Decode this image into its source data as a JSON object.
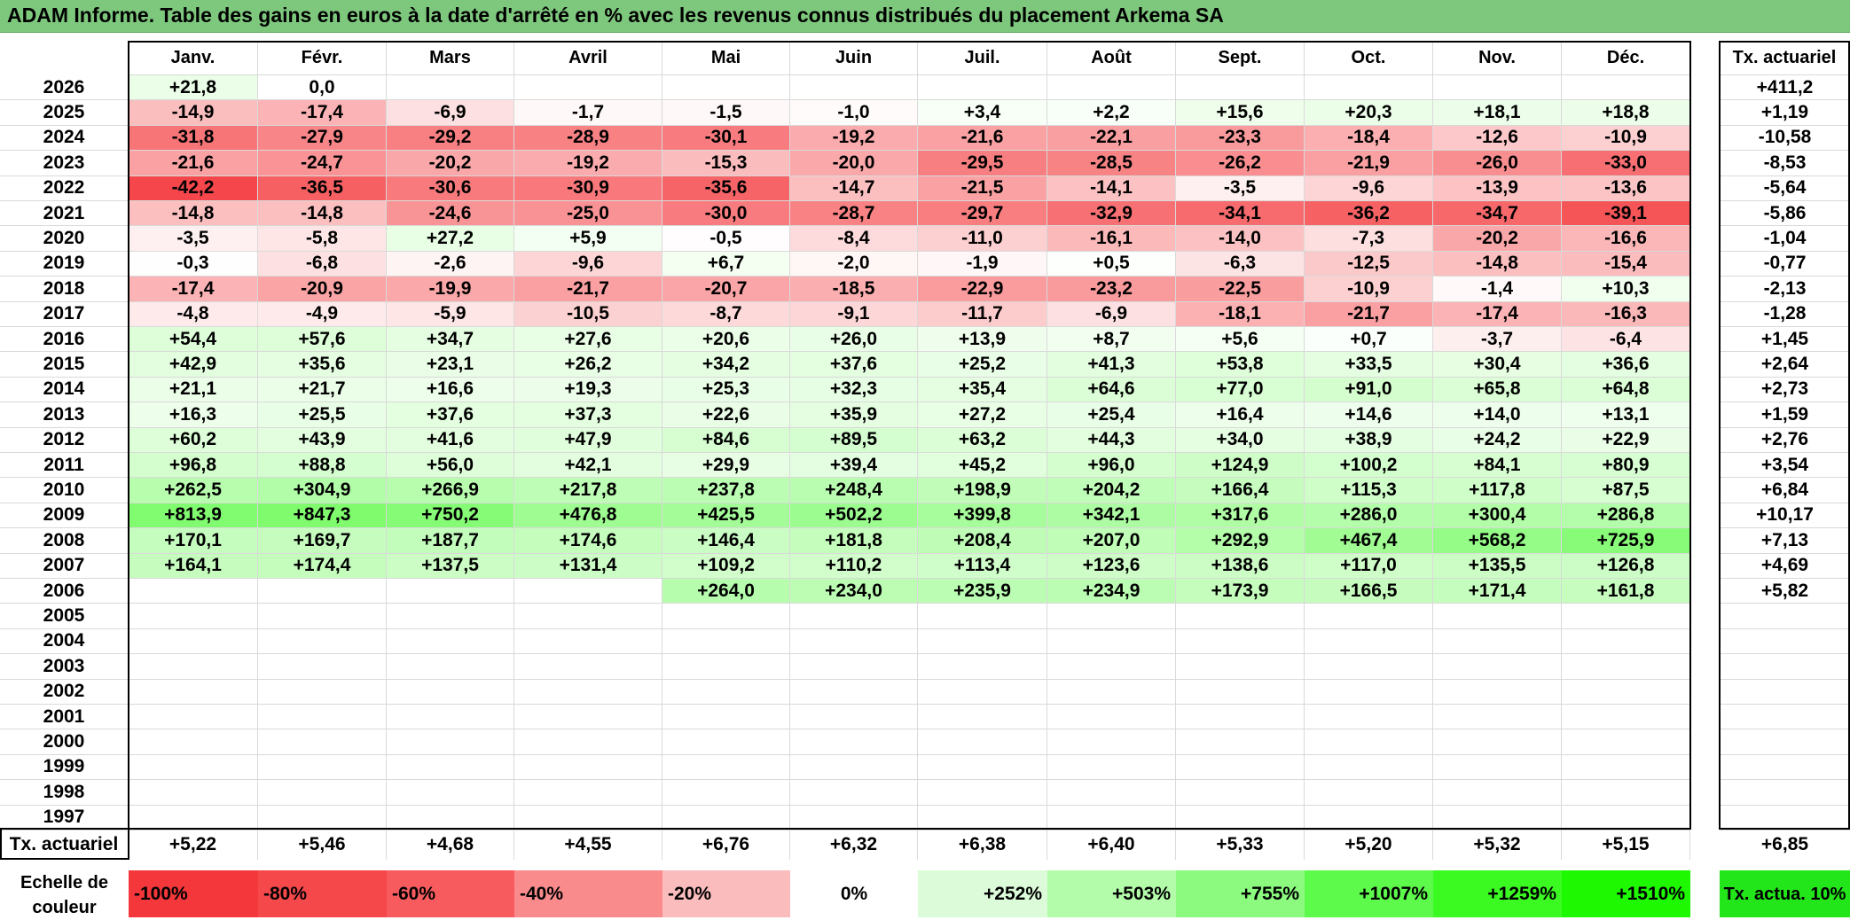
{
  "title": "ADAM Informe. Table des gains en euros à la date d'arrêté en % avec les revenus connus distribués du placement Arkema SA",
  "columns": [
    "Janv.",
    "Févr.",
    "Mars",
    "Avril",
    "Mai",
    "Juin",
    "Juil.",
    "Août",
    "Sept.",
    "Oct.",
    "Nov.",
    "Déc."
  ],
  "actuarial_header": "Tx. actuariel",
  "rows": [
    {
      "year": "2026",
      "cells": [
        "+21,8",
        "0,0",
        "",
        "",
        "",
        "",
        "",
        "",
        "",
        "",
        "",
        ""
      ],
      "rate": "+411,2"
    },
    {
      "year": "2025",
      "cells": [
        "-14,9",
        "-17,4",
        "-6,9",
        "-1,7",
        "-1,5",
        "-1,0",
        "+3,4",
        "+2,2",
        "+15,6",
        "+20,3",
        "+18,1",
        "+18,8"
      ],
      "rate": "+1,19"
    },
    {
      "year": "2024",
      "cells": [
        "-31,8",
        "-27,9",
        "-29,2",
        "-28,9",
        "-30,1",
        "-19,2",
        "-21,6",
        "-22,1",
        "-23,3",
        "-18,4",
        "-12,6",
        "-10,9"
      ],
      "rate": "-10,58"
    },
    {
      "year": "2023",
      "cells": [
        "-21,6",
        "-24,7",
        "-20,2",
        "-19,2",
        "-15,3",
        "-20,0",
        "-29,5",
        "-28,5",
        "-26,2",
        "-21,9",
        "-26,0",
        "-33,0"
      ],
      "rate": "-8,53"
    },
    {
      "year": "2022",
      "cells": [
        "-42,2",
        "-36,5",
        "-30,6",
        "-30,9",
        "-35,6",
        "-14,7",
        "-21,5",
        "-14,1",
        "-3,5",
        "-9,6",
        "-13,9",
        "-13,6"
      ],
      "rate": "-5,64"
    },
    {
      "year": "2021",
      "cells": [
        "-14,8",
        "-14,8",
        "-24,6",
        "-25,0",
        "-30,0",
        "-28,7",
        "-29,7",
        "-32,9",
        "-34,1",
        "-36,2",
        "-34,7",
        "-39,1"
      ],
      "rate": "-5,86"
    },
    {
      "year": "2020",
      "cells": [
        "-3,5",
        "-5,8",
        "+27,2",
        "+5,9",
        "-0,5",
        "-8,4",
        "-11,0",
        "-16,1",
        "-14,0",
        "-7,3",
        "-20,2",
        "-16,6"
      ],
      "rate": "-1,04"
    },
    {
      "year": "2019",
      "cells": [
        "-0,3",
        "-6,8",
        "-2,6",
        "-9,6",
        "+6,7",
        "-2,0",
        "-1,9",
        "+0,5",
        "-6,3",
        "-12,5",
        "-14,8",
        "-15,4"
      ],
      "rate": "-0,77"
    },
    {
      "year": "2018",
      "cells": [
        "-17,4",
        "-20,9",
        "-19,9",
        "-21,7",
        "-20,7",
        "-18,5",
        "-22,9",
        "-23,2",
        "-22,5",
        "-10,9",
        "-1,4",
        "+10,3"
      ],
      "rate": "-2,13"
    },
    {
      "year": "2017",
      "cells": [
        "-4,8",
        "-4,9",
        "-5,9",
        "-10,5",
        "-8,7",
        "-9,1",
        "-11,7",
        "-6,9",
        "-18,1",
        "-21,7",
        "-17,4",
        "-16,3"
      ],
      "rate": "-1,28"
    },
    {
      "year": "2016",
      "cells": [
        "+54,4",
        "+57,6",
        "+34,7",
        "+27,6",
        "+20,6",
        "+26,0",
        "+13,9",
        "+8,7",
        "+5,6",
        "+0,7",
        "-3,7",
        "-6,4"
      ],
      "rate": "+1,45"
    },
    {
      "year": "2015",
      "cells": [
        "+42,9",
        "+35,6",
        "+23,1",
        "+26,2",
        "+34,2",
        "+37,6",
        "+25,2",
        "+41,3",
        "+53,8",
        "+33,5",
        "+30,4",
        "+36,6"
      ],
      "rate": "+2,64"
    },
    {
      "year": "2014",
      "cells": [
        "+21,1",
        "+21,7",
        "+16,6",
        "+19,3",
        "+25,3",
        "+32,3",
        "+35,4",
        "+64,6",
        "+77,0",
        "+91,0",
        "+65,8",
        "+64,8"
      ],
      "rate": "+2,73"
    },
    {
      "year": "2013",
      "cells": [
        "+16,3",
        "+25,5",
        "+37,6",
        "+37,3",
        "+22,6",
        "+35,9",
        "+27,2",
        "+25,4",
        "+16,4",
        "+14,6",
        "+14,0",
        "+13,1"
      ],
      "rate": "+1,59"
    },
    {
      "year": "2012",
      "cells": [
        "+60,2",
        "+43,9",
        "+41,6",
        "+47,9",
        "+84,6",
        "+89,5",
        "+63,2",
        "+44,3",
        "+34,0",
        "+38,9",
        "+24,2",
        "+22,9"
      ],
      "rate": "+2,76"
    },
    {
      "year": "2011",
      "cells": [
        "+96,8",
        "+88,8",
        "+56,0",
        "+42,1",
        "+29,9",
        "+39,4",
        "+45,2",
        "+96,0",
        "+124,9",
        "+100,2",
        "+84,1",
        "+80,9"
      ],
      "rate": "+3,54"
    },
    {
      "year": "2010",
      "cells": [
        "+262,5",
        "+304,9",
        "+266,9",
        "+217,8",
        "+237,8",
        "+248,4",
        "+198,9",
        "+204,2",
        "+166,4",
        "+115,3",
        "+117,8",
        "+87,5"
      ],
      "rate": "+6,84"
    },
    {
      "year": "2009",
      "cells": [
        "+813,9",
        "+847,3",
        "+750,2",
        "+476,8",
        "+425,5",
        "+502,2",
        "+399,8",
        "+342,1",
        "+317,6",
        "+286,0",
        "+300,4",
        "+286,8"
      ],
      "rate": "+10,17"
    },
    {
      "year": "2008",
      "cells": [
        "+170,1",
        "+169,7",
        "+187,7",
        "+174,6",
        "+146,4",
        "+181,8",
        "+208,4",
        "+207,0",
        "+292,9",
        "+467,4",
        "+568,2",
        "+725,9"
      ],
      "rate": "+7,13"
    },
    {
      "year": "2007",
      "cells": [
        "+164,1",
        "+174,4",
        "+137,5",
        "+131,4",
        "+109,2",
        "+110,2",
        "+113,4",
        "+123,6",
        "+138,6",
        "+117,0",
        "+135,5",
        "+126,8"
      ],
      "rate": "+4,69"
    },
    {
      "year": "2006",
      "cells": [
        "",
        "",
        "",
        "",
        "+264,0",
        "+234,0",
        "+235,9",
        "+234,9",
        "+173,9",
        "+166,5",
        "+171,4",
        "+161,8"
      ],
      "rate": "+5,82"
    },
    {
      "year": "2005",
      "cells": [
        "",
        "",
        "",
        "",
        "",
        "",
        "",
        "",
        "",
        "",
        "",
        ""
      ],
      "rate": ""
    },
    {
      "year": "2004",
      "cells": [
        "",
        "",
        "",
        "",
        "",
        "",
        "",
        "",
        "",
        "",
        "",
        ""
      ],
      "rate": ""
    },
    {
      "year": "2003",
      "cells": [
        "",
        "",
        "",
        "",
        "",
        "",
        "",
        "",
        "",
        "",
        "",
        ""
      ],
      "rate": ""
    },
    {
      "year": "2002",
      "cells": [
        "",
        "",
        "",
        "",
        "",
        "",
        "",
        "",
        "",
        "",
        "",
        ""
      ],
      "rate": ""
    },
    {
      "year": "2001",
      "cells": [
        "",
        "",
        "",
        "",
        "",
        "",
        "",
        "",
        "",
        "",
        "",
        ""
      ],
      "rate": ""
    },
    {
      "year": "2000",
      "cells": [
        "",
        "",
        "",
        "",
        "",
        "",
        "",
        "",
        "",
        "",
        "",
        ""
      ],
      "rate": ""
    },
    {
      "year": "1999",
      "cells": [
        "",
        "",
        "",
        "",
        "",
        "",
        "",
        "",
        "",
        "",
        "",
        ""
      ],
      "rate": ""
    },
    {
      "year": "1998",
      "cells": [
        "",
        "",
        "",
        "",
        "",
        "",
        "",
        "",
        "",
        "",
        "",
        ""
      ],
      "rate": ""
    },
    {
      "year": "1997",
      "cells": [
        "",
        "",
        "",
        "",
        "",
        "",
        "",
        "",
        "",
        "",
        "",
        ""
      ],
      "rate": ""
    }
  ],
  "footer": {
    "label": "Tx. actuariel",
    "values": [
      "+5,22",
      "+5,46",
      "+4,68",
      "+4,55",
      "+6,76",
      "+6,32",
      "+6,38",
      "+6,40",
      "+5,33",
      "+5,20",
      "+5,32",
      "+5,15"
    ],
    "total": "+6,85"
  },
  "legend": {
    "label": "Echelle de couleur",
    "items": [
      {
        "text": "-100%",
        "color": "#f4373b",
        "align": "left"
      },
      {
        "text": "-80%",
        "color": "#f5484b",
        "align": "left"
      },
      {
        "text": "-60%",
        "color": "#f75b5e",
        "align": "left"
      },
      {
        "text": "-40%",
        "color": "#f98b8d",
        "align": "left"
      },
      {
        "text": "-20%",
        "color": "#fbbcbd",
        "align": "left"
      },
      {
        "text": "0%",
        "color": "#ffffff",
        "align": "center"
      },
      {
        "text": "+252%",
        "color": "#dcfcd9",
        "align": "right"
      },
      {
        "text": "+503%",
        "color": "#b3fcaa",
        "align": "right"
      },
      {
        "text": "+755%",
        "color": "#8bfa7f",
        "align": "right"
      },
      {
        "text": "+1007%",
        "color": "#5dfa4b",
        "align": "right"
      },
      {
        "text": "+1259%",
        "color": "#3afa22",
        "align": "right"
      },
      {
        "text": "+1510%",
        "color": "#1ef800",
        "align": "right"
      }
    ],
    "rate_label": "Tx. actua. 10%",
    "rate_color": "#22e61a"
  },
  "colors": {
    "title_background": "#7ec87e",
    "negative_max": "#f4373b",
    "positive_max": "#1ef800"
  }
}
